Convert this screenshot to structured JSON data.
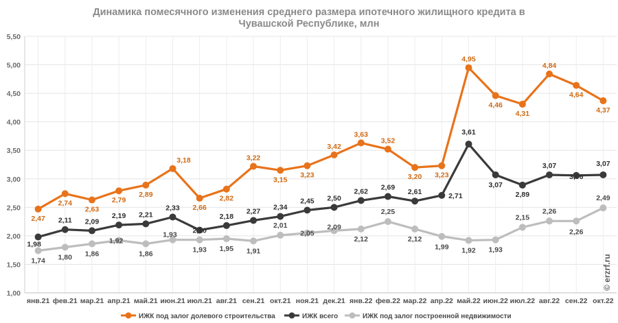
{
  "chart_data": {
    "type": "line",
    "title_lines": [
      "Динамика помесячного изменения среднего размера ипотечного жилищного кредита в",
      "Чувашской Республике, млн"
    ],
    "categories": [
      "янв.21",
      "фев.21",
      "мар.21",
      "апр.21",
      "май.21",
      "июн.21",
      "июл.21",
      "авг.21",
      "сен.21",
      "окт.21",
      "ноя.21",
      "дек.21",
      "янв.22",
      "фев.22",
      "мар.22",
      "апр.22",
      "май.22",
      "июн.22",
      "июл.22",
      "авг.22",
      "сен.22",
      "окт.22"
    ],
    "ylim": [
      1.0,
      5.5
    ],
    "yticks": [
      "1,00",
      "1,50",
      "2,00",
      "2,50",
      "3,00",
      "3,50",
      "4,00",
      "4,50",
      "5,00",
      "5,50"
    ],
    "ytick_values": [
      1.0,
      1.5,
      2.0,
      2.5,
      3.0,
      3.5,
      4.0,
      4.5,
      5.0,
      5.5
    ],
    "grid": true,
    "legend_position": "bottom",
    "series": [
      {
        "name": "ИЖК под залог долевого строительства",
        "color": "#e8731a",
        "values": [
          2.47,
          2.74,
          2.63,
          2.79,
          2.89,
          3.18,
          2.66,
          2.82,
          3.22,
          3.15,
          3.23,
          3.42,
          3.63,
          3.52,
          3.2,
          3.23,
          4.95,
          4.46,
          4.31,
          4.84,
          4.64,
          4.37
        ],
        "labels": [
          "2,47",
          "2,74",
          "2,63",
          "2,79",
          "2,89",
          "3,18",
          "2,66",
          "2,82",
          "3,22",
          "3,15",
          "3,23",
          "3,42",
          "3,63",
          "3,52",
          "3,20",
          "3,23",
          "4,95",
          "4,46",
          "4,31",
          "4,84",
          "4,64",
          "4,37"
        ]
      },
      {
        "name": "ИЖК всего",
        "color": "#3a3a3a",
        "values": [
          1.98,
          2.11,
          2.09,
          2.19,
          2.21,
          2.33,
          2.1,
          2.18,
          2.27,
          2.34,
          2.45,
          2.5,
          2.62,
          2.69,
          2.61,
          2.71,
          3.61,
          3.07,
          2.89,
          3.07,
          3.06,
          3.07
        ],
        "labels": [
          "1,98",
          "2,11",
          "2,09",
          "2,19",
          "2,21",
          "2,33",
          "2,10",
          "2,18",
          "2,27",
          "2,34",
          "2,45",
          "2,50",
          "2,62",
          "2,69",
          "2,61",
          "2,71",
          "3,61",
          "3,07",
          "2,89",
          "3,07",
          "3,06",
          "3,07"
        ]
      },
      {
        "name": "ИЖК под залог построенной недвижимости",
        "color": "#bdbdbd",
        "values": [
          1.74,
          1.8,
          1.86,
          1.92,
          1.86,
          1.93,
          1.93,
          1.95,
          1.91,
          2.01,
          2.05,
          2.09,
          2.12,
          2.25,
          2.12,
          1.99,
          1.92,
          1.93,
          2.15,
          2.26,
          2.26,
          2.49
        ],
        "labels": [
          "1,74",
          "1,80",
          "1,86",
          "1,92",
          "1,86",
          "1,93",
          "1,93",
          "1,95",
          "1,91",
          "2,01",
          "2,05",
          "2,09",
          "2,12",
          "2,25",
          "2,12",
          "1,99",
          "1,92",
          "1,93",
          "2,15",
          "2,26",
          "2,26",
          "2,49"
        ]
      }
    ]
  },
  "watermark": "© erzrf.ru"
}
